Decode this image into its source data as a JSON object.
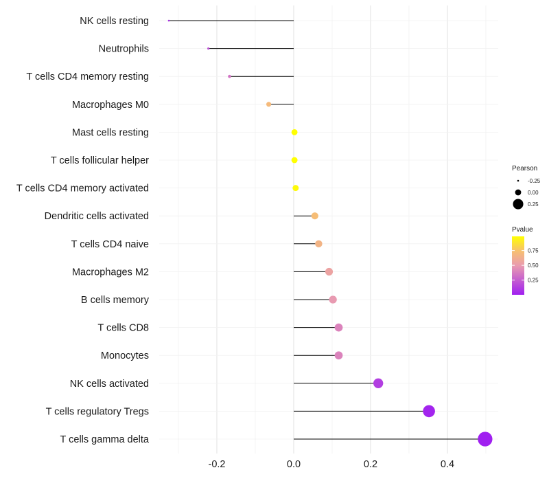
{
  "chart_data": {
    "type": "lollipop",
    "title": "",
    "xlabel": "",
    "ylabel": "",
    "xlim": [
      -0.37,
      0.52
    ],
    "x_ticks": [
      -0.2,
      0.0,
      0.2,
      0.4
    ],
    "x_tick_labels": [
      "-0.2",
      "0.0",
      "0.2",
      "0.4"
    ],
    "categories": [
      "NK cells resting",
      "Neutrophils",
      "T cells CD4 memory resting",
      "Macrophages M0",
      "Mast cells resting",
      "T cells follicular helper",
      "T cells CD4 memory activated",
      "Dendritic cells activated",
      "T cells CD4 naive",
      "Macrophages M2",
      "B cells memory",
      "T cells CD8",
      "Monocytes",
      "NK cells activated",
      "T cells regulatory  Tregs",
      "T cells gamma delta"
    ],
    "pearson": [
      -0.325,
      -0.222,
      -0.167,
      -0.065,
      0.002,
      0.002,
      0.005,
      0.055,
      0.065,
      0.092,
      0.102,
      0.117,
      0.117,
      0.22,
      0.352,
      0.498
    ],
    "pvalue": [
      0.06,
      0.2,
      0.34,
      0.7,
      0.99,
      0.99,
      0.97,
      0.72,
      0.66,
      0.55,
      0.49,
      0.4,
      0.4,
      0.12,
      0.02,
      0.001
    ],
    "legend_size": {
      "title": "Pearson",
      "entries": [
        "-0.25",
        "0.00",
        "0.25"
      ],
      "values": [
        -0.25,
        0.0,
        0.25
      ]
    },
    "legend_color": {
      "title": "Pvalue",
      "labels": [
        "0.75",
        "0.50",
        "0.25"
      ],
      "values": [
        0.75,
        0.5,
        0.25
      ],
      "range": [
        0.001,
        0.99
      ],
      "low_color": "#a020f0",
      "high_color": "#ffff00"
    },
    "grid": true,
    "legend_position": "right"
  }
}
